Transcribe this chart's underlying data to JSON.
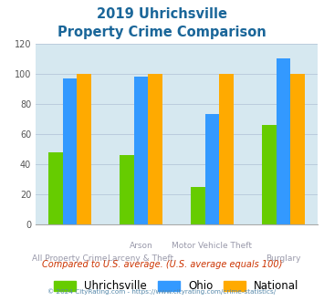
{
  "title_line1": "2019 Uhrichsville",
  "title_line2": "Property Crime Comparison",
  "category_labels_top": [
    "",
    "Arson",
    "Motor Vehicle Theft",
    ""
  ],
  "category_labels_bottom": [
    "All Property Crime",
    "Larceny & Theft",
    "",
    "Burglary"
  ],
  "series": {
    "Uhrichsville": [
      48,
      46,
      25,
      66
    ],
    "Ohio": [
      97,
      98,
      73,
      110
    ],
    "National": [
      100,
      100,
      100,
      100
    ]
  },
  "colors": {
    "Uhrichsville": "#66cc00",
    "Ohio": "#3399ff",
    "National": "#ffaa00"
  },
  "ylim": [
    0,
    120
  ],
  "yticks": [
    0,
    20,
    40,
    60,
    80,
    100,
    120
  ],
  "title_color": "#1a6699",
  "plot_bg_color": "#d6e8f0",
  "fig_bg_color": "#ffffff",
  "footer_text": "Compared to U.S. average. (U.S. average equals 100)",
  "copyright_text": "© 2024 CityRating.com - https://www.cityrating.com/crime-statistics/",
  "footer_color": "#cc3300",
  "copyright_color": "#5588aa",
  "grid_color": "#bbccdd",
  "label_color": "#9999aa"
}
